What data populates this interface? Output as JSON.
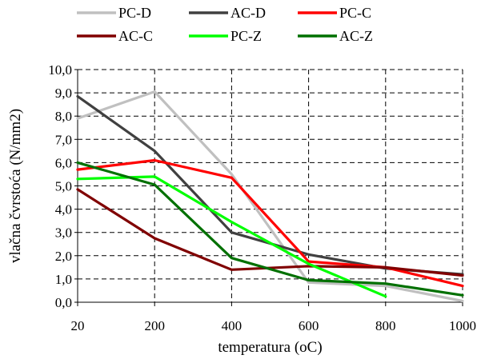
{
  "chart_data": {
    "type": "line",
    "x": [
      "20",
      "200",
      "400",
      "600",
      "800",
      "1000"
    ],
    "xlabel": "temperatura (oC)",
    "ylabel": "vlačna čvrstoća (N/mm2)",
    "ylim": [
      0,
      10
    ],
    "yticks": [
      "0,0",
      "1,0",
      "2,0",
      "3,0",
      "4,0",
      "5,0",
      "6,0",
      "7,0",
      "8,0",
      "9,0",
      "10,0"
    ],
    "grid": true,
    "legend_position": "top",
    "series": [
      {
        "name": "PC-D",
        "color": "#c0c0c0",
        "values": [
          7.9,
          9.05,
          5.5,
          0.85,
          0.7,
          0.05
        ]
      },
      {
        "name": "AC-D",
        "color": "#404040",
        "values": [
          8.85,
          6.5,
          3.0,
          2.05,
          1.45,
          1.2
        ]
      },
      {
        "name": "PC-C",
        "color": "#ff0000",
        "values": [
          5.7,
          6.1,
          5.35,
          1.75,
          1.5,
          0.7
        ]
      },
      {
        "name": "AC-C",
        "color": "#800000",
        "values": [
          4.85,
          2.75,
          1.4,
          1.55,
          1.5,
          1.15
        ]
      },
      {
        "name": "PC-Z",
        "color": "#00ff00",
        "values": [
          5.3,
          5.4,
          3.45,
          1.65,
          0.25,
          null
        ]
      },
      {
        "name": "AC-Z",
        "color": "#007000",
        "values": [
          6.0,
          5.05,
          1.9,
          0.95,
          0.8,
          0.3
        ]
      }
    ]
  }
}
